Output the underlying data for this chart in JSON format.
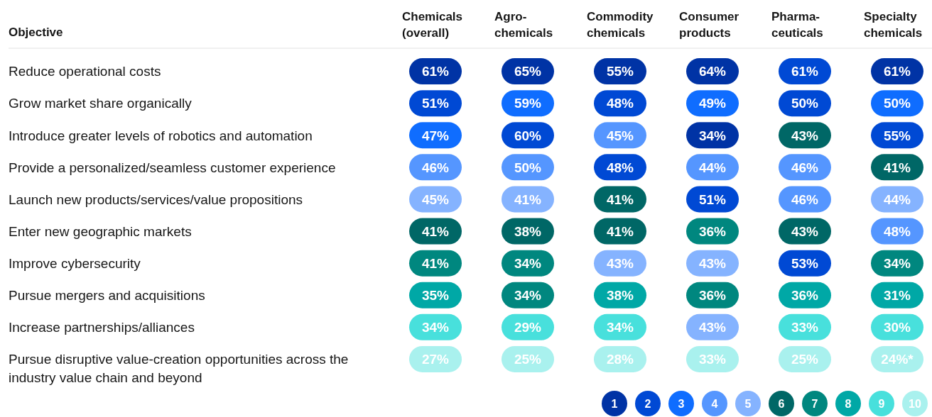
{
  "chart_data": {
    "type": "heatmap",
    "ylabel": "Objective",
    "categories": [
      "Chemicals (overall)",
      "Agro-chemicals",
      "Commodity chemicals",
      "Consumer products",
      "Pharma-ceuticals",
      "Specialty chemicals"
    ],
    "y_categories": [
      "Reduce operational costs",
      "Grow market share organically",
      "Introduce greater levels of robotics and automation",
      "Provide a personalized/seamless customer experience",
      "Launch new products/services/value propositions",
      "Enter new geographic markets",
      "Improve cybersecurity",
      "Pursue mergers and acquisitions",
      "Increase partnerships/alliances",
      "Pursue disruptive value-creation opportunities across the industry value chain and beyond"
    ],
    "cells": [
      [
        61,
        65,
        55,
        64,
        61,
        61
      ],
      [
        51,
        59,
        48,
        49,
        50,
        50
      ],
      [
        47,
        60,
        45,
        34,
        43,
        55
      ],
      [
        46,
        50,
        48,
        44,
        46,
        41
      ],
      [
        45,
        41,
        41,
        51,
        46,
        44
      ],
      [
        41,
        38,
        41,
        36,
        43,
        48
      ],
      [
        41,
        34,
        43,
        43,
        53,
        34
      ],
      [
        35,
        34,
        38,
        36,
        36,
        31
      ],
      [
        34,
        29,
        34,
        43,
        33,
        30
      ],
      [
        27,
        25,
        28,
        33,
        25,
        24
      ]
    ],
    "cell_labels": [
      [
        "61%",
        "65%",
        "55%",
        "64%",
        "61%",
        "61%"
      ],
      [
        "51%",
        "59%",
        "48%",
        "49%",
        "50%",
        "50%"
      ],
      [
        "47%",
        "60%",
        "45%",
        "34%",
        "43%",
        "55%"
      ],
      [
        "46%",
        "50%",
        "48%",
        "44%",
        "46%",
        "41%"
      ],
      [
        "45%",
        "41%",
        "41%",
        "51%",
        "46%",
        "44%"
      ],
      [
        "41%",
        "38%",
        "41%",
        "36%",
        "43%",
        "48%"
      ],
      [
        "41%",
        "34%",
        "43%",
        "43%",
        "53%",
        "34%"
      ],
      [
        "35%",
        "34%",
        "38%",
        "36%",
        "36%",
        "31%"
      ],
      [
        "34%",
        "29%",
        "34%",
        "43%",
        "33%",
        "30%"
      ],
      [
        "27%",
        "25%",
        "28%",
        "33%",
        "25%",
        "24%*"
      ]
    ],
    "colors": [
      [
        "#0033a5",
        "#0033a5",
        "#0033a5",
        "#0033a5",
        "#0049d4",
        "#0033a5"
      ],
      [
        "#0049d4",
        "#0f6dff",
        "#0049d4",
        "#0f6dff",
        "#0049d4",
        "#0f6dff"
      ],
      [
        "#0f6dff",
        "#0049d4",
        "#5596ff",
        "#0033a5",
        "#006766",
        "#0049d4"
      ],
      [
        "#5596ff",
        "#5596ff",
        "#0049d4",
        "#5596ff",
        "#5596ff",
        "#006766"
      ],
      [
        "#85b3ff",
        "#85b3ff",
        "#006766",
        "#0049d4",
        "#5596ff",
        "#85b3ff"
      ],
      [
        "#006766",
        "#006766",
        "#006766",
        "#00877f",
        "#006766",
        "#5596ff"
      ],
      [
        "#00877f",
        "#00877f",
        "#85b3ff",
        "#85b3ff",
        "#0049d4",
        "#00877f"
      ],
      [
        "#00a8a6",
        "#00877f",
        "#00a8a6",
        "#00877f",
        "#00a8a6",
        "#00a8a6"
      ],
      [
        "#48e0dc",
        "#48e0dc",
        "#48e0dc",
        "#85b3ff",
        "#48e0dc",
        "#48e0dc"
      ],
      [
        "#a9f1ee",
        "#a9f1ee",
        "#a9f1ee",
        "#a9f1ee",
        "#a9f1ee",
        "#a9f1ee"
      ]
    ],
    "annotations": [
      "1",
      "2",
      "3",
      "4",
      "5",
      "6",
      "7",
      "8",
      "9",
      "10"
    ]
  }
}
